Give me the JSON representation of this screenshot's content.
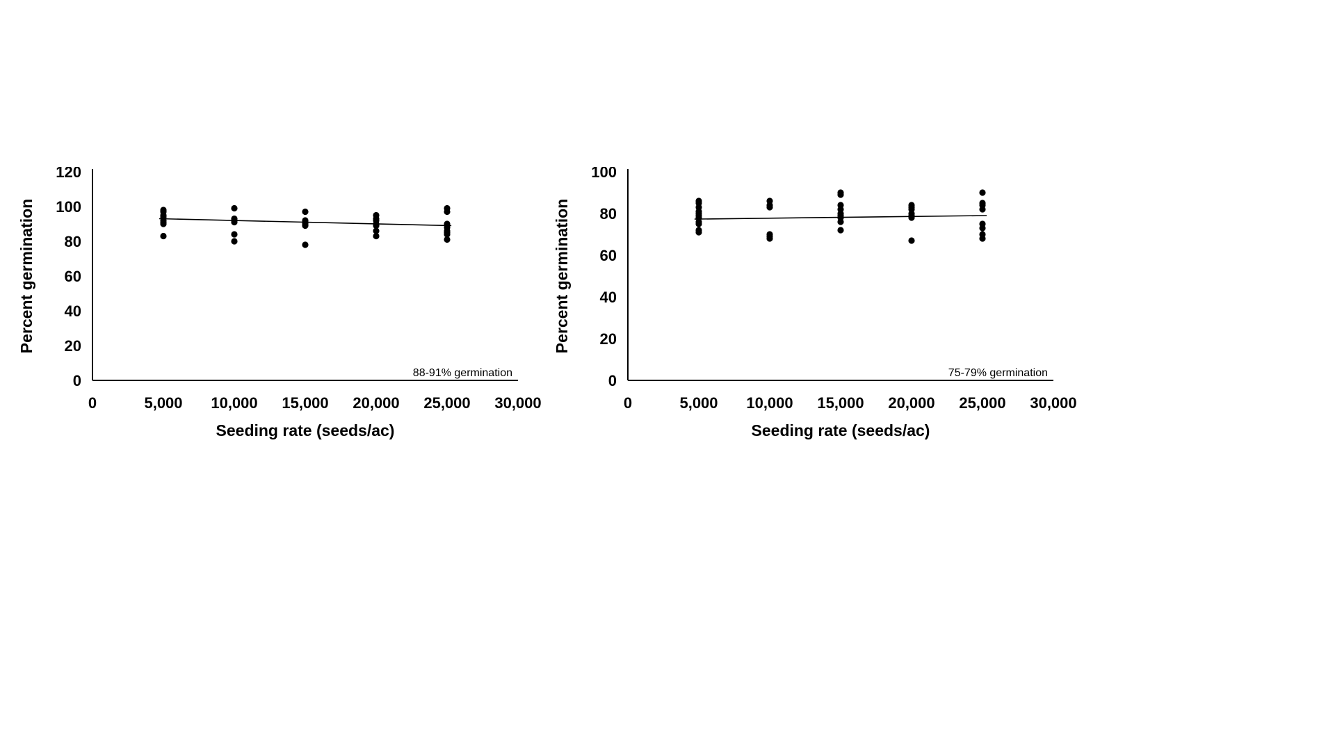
{
  "page": {
    "background": "#ffffff",
    "accent_color": "#000000"
  },
  "chart_data": [
    {
      "type": "scatter",
      "title": "",
      "xlabel": "Seeding rate (seeds/ac)",
      "ylabel": "Percent germination",
      "annotation": "88-91% germination",
      "xlim": [
        0,
        30000
      ],
      "ylim": [
        0,
        120
      ],
      "xticks": [
        0,
        5000,
        10000,
        15000,
        20000,
        25000,
        30000
      ],
      "xtick_labels": [
        "0",
        "5,000",
        "10,000",
        "15,000",
        "20,000",
        "25,000",
        "30,000"
      ],
      "yticks": [
        0,
        20,
        40,
        60,
        80,
        100,
        120
      ],
      "ytick_labels": [
        "0",
        "20",
        "40",
        "60",
        "80",
        "100",
        "120"
      ],
      "grid": false,
      "legend": "none",
      "marker_color": "#000000",
      "points": [
        {
          "x": 5000,
          "y": [
            98,
            97,
            95,
            94,
            92,
            91,
            90,
            83
          ]
        },
        {
          "x": 10000,
          "y": [
            99,
            93,
            92,
            91,
            84,
            80
          ]
        },
        {
          "x": 15000,
          "y": [
            97,
            92,
            91,
            90,
            89,
            78
          ]
        },
        {
          "x": 20000,
          "y": [
            95,
            93,
            92,
            90,
            89,
            86,
            83
          ]
        },
        {
          "x": 25000,
          "y": [
            99,
            97,
            90,
            88,
            86,
            85,
            84,
            81
          ]
        }
      ],
      "trendline": {
        "x1": 4700,
        "y1": 93,
        "x2": 25300,
        "y2": 89
      }
    },
    {
      "type": "scatter",
      "title": "",
      "xlabel": "Seeding rate (seeds/ac)",
      "ylabel": "Percent germination",
      "annotation": "75-79% germination",
      "xlim": [
        0,
        30000
      ],
      "ylim": [
        0,
        100
      ],
      "xticks": [
        0,
        5000,
        10000,
        15000,
        20000,
        25000,
        30000
      ],
      "xtick_labels": [
        "0",
        "5,000",
        "10,000",
        "15,000",
        "20,000",
        "25,000",
        "30,000"
      ],
      "yticks": [
        0,
        20,
        40,
        60,
        80,
        100
      ],
      "ytick_labels": [
        "0",
        "20",
        "40",
        "60",
        "80",
        "100"
      ],
      "grid": false,
      "legend": "none",
      "marker_color": "#000000",
      "points": [
        {
          "x": 5000,
          "y": [
            86,
            85,
            83,
            81,
            80,
            79,
            78,
            76,
            75,
            72,
            71
          ]
        },
        {
          "x": 10000,
          "y": [
            86,
            84,
            83,
            70,
            69,
            68
          ]
        },
        {
          "x": 15000,
          "y": [
            90,
            89,
            84,
            82,
            80,
            79,
            78,
            76,
            72
          ]
        },
        {
          "x": 20000,
          "y": [
            84,
            83,
            82,
            80,
            79,
            78,
            67
          ]
        },
        {
          "x": 25000,
          "y": [
            90,
            85,
            84,
            82,
            75,
            73,
            70,
            68
          ]
        }
      ],
      "trendline": {
        "x1": 4700,
        "y1": 77.3,
        "x2": 25300,
        "y2": 79
      }
    }
  ]
}
